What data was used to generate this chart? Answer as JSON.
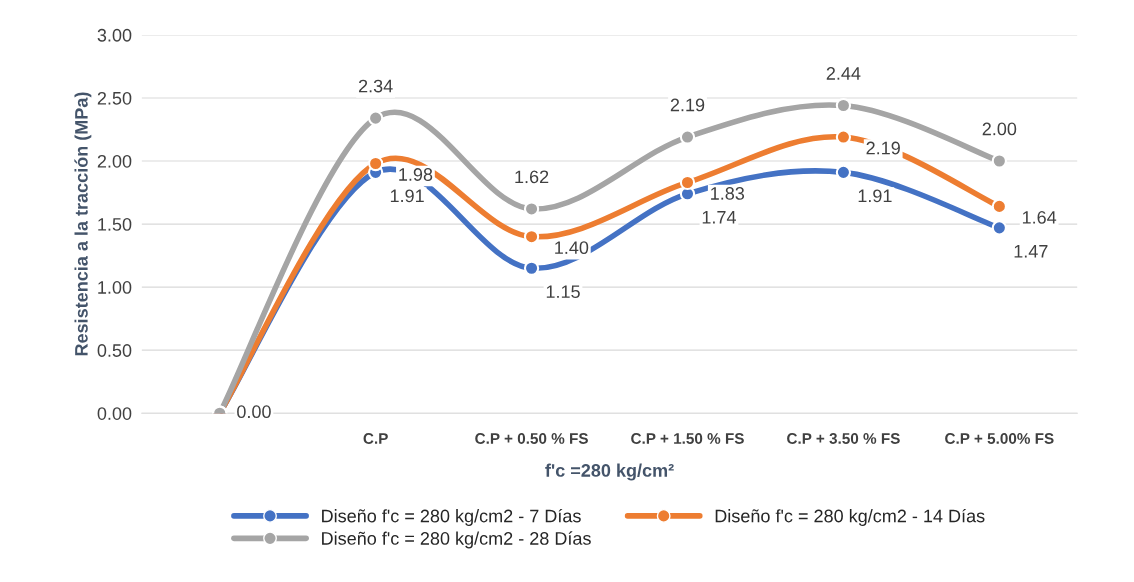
{
  "chart_data": {
    "type": "line",
    "xlabel": "f'c =280 kg/cm²",
    "ylabel": "Resistencia a la tracción (MPa)",
    "categories": [
      null,
      "C.P",
      "C.P + 0.50 % FS",
      "C.P + 1.50 % FS",
      "C.P + 3.50 % FS",
      "C.P + 5.00% FS"
    ],
    "series": [
      {
        "name": "Diseño f'c = 280 kg/cm2 - 7 Días",
        "color": "#4472c4",
        "values": [
          0,
          1.91,
          1.15,
          1.74,
          1.91,
          1.47
        ],
        "value_labels": [
          null,
          "1.91",
          "1.15",
          "1.74",
          "1.91",
          "1.47"
        ]
      },
      {
        "name": "Diseño f'c = 280 kg/cm2 - 14 Días",
        "color": "#ed7d31",
        "values": [
          0,
          1.98,
          1.4,
          1.83,
          2.19,
          1.64
        ],
        "value_labels": [
          null,
          "1.98",
          "1.40",
          "1.83",
          "2.19",
          "1.64"
        ]
      },
      {
        "name": "Diseño f'c = 280 kg/cm2 - 28 Días",
        "color": "#a5a5a5",
        "values": [
          0,
          2.34,
          1.62,
          2.19,
          2.44,
          2.0
        ],
        "value_labels": [
          "0.00",
          "2.34",
          "1.62",
          "2.19",
          "2.44",
          "2.00"
        ]
      }
    ],
    "ylim": [
      0,
      3
    ],
    "yticks": [
      {
        "value": 0,
        "label": "0.00"
      },
      {
        "value": 0.5,
        "label": "0.50"
      },
      {
        "value": 1,
        "label": "1.00"
      },
      {
        "value": 1.5,
        "label": "1.50"
      },
      {
        "value": 2,
        "label": "2.00"
      },
      {
        "value": 2.5,
        "label": "2.50"
      },
      {
        "value": 3,
        "label": "3.00"
      }
    ],
    "grid": "y",
    "legend": "bottom",
    "marker": "circle",
    "line_style": "solid"
  }
}
